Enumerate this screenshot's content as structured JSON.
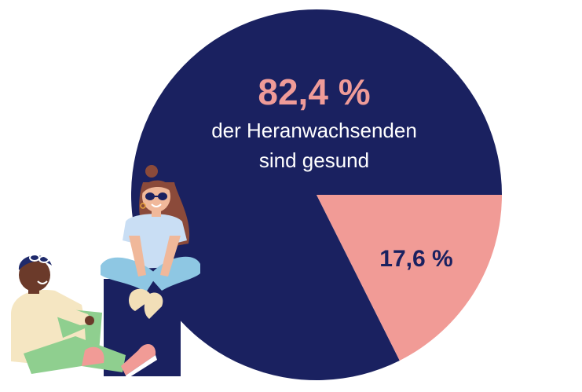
{
  "chart_data": {
    "type": "pie",
    "slices": [
      {
        "value": 82.4,
        "label": "82,4 %",
        "description_lines": [
          "der Heranwachsenden",
          "sind gesund"
        ],
        "color": "#1a2160",
        "label_color": "#ef9b98",
        "text_color": "#ffffff"
      },
      {
        "value": 17.6,
        "label": "17,6 %",
        "color": "#f19b96",
        "label_color": "#1a2160"
      }
    ]
  },
  "colors": {
    "navy": "#1a2160",
    "pink": "#f19b96",
    "background": "#ffffff"
  },
  "illustration": {
    "figures": [
      "sitting-girl-on-box",
      "sitting-boy-on-floor"
    ]
  }
}
